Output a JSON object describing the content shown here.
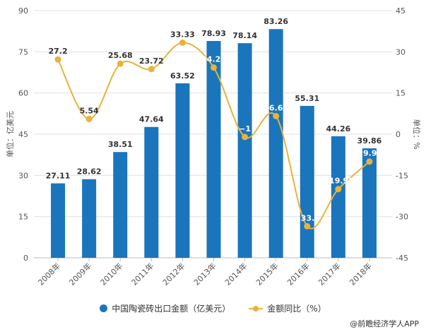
{
  "chart_data": {
    "type": "bar+line",
    "categories": [
      "2008年",
      "2009年",
      "2010年",
      "2011年",
      "2012年",
      "2013年",
      "2014年",
      "2015年",
      "2016年",
      "2017年",
      "2018年"
    ],
    "series": [
      {
        "name": "中国陶瓷砖出口金额（亿美元）",
        "type": "bar",
        "axis": "left",
        "color": "#1a75bc",
        "values": [
          27.11,
          28.62,
          38.51,
          47.64,
          63.52,
          78.93,
          78.14,
          83.26,
          55.31,
          44.26,
          39.86
        ]
      },
      {
        "name": "金额同比（%）",
        "type": "line",
        "axis": "right",
        "color": "#e8b33a",
        "values": [
          27.2,
          5.54,
          25.68,
          23.72,
          33.33,
          24.26,
          -1,
          6.6,
          -33.5,
          -19.98,
          -9.95
        ]
      }
    ],
    "line_labels": [
      "27.2",
      "5.54",
      "25.68",
      "23.72",
      "33.33",
      "24.26",
      "−1",
      "6.6",
      "−33.5",
      "−19.98",
      "−9.95"
    ],
    "ylabel_left": "单位：亿美元",
    "ylabel_right": "单位：%",
    "ylim_left": [
      0,
      90
    ],
    "yticks_left": [
      "0",
      "15",
      "30",
      "45",
      "60",
      "75",
      "90"
    ],
    "ylim_right": [
      -45,
      45
    ],
    "yticks_right": [
      "-45",
      "-30",
      "-15",
      "0",
      "15",
      "30",
      "45"
    ],
    "grid": true,
    "legend": "bottom"
  },
  "credit": "@前瞻经济学人APP"
}
